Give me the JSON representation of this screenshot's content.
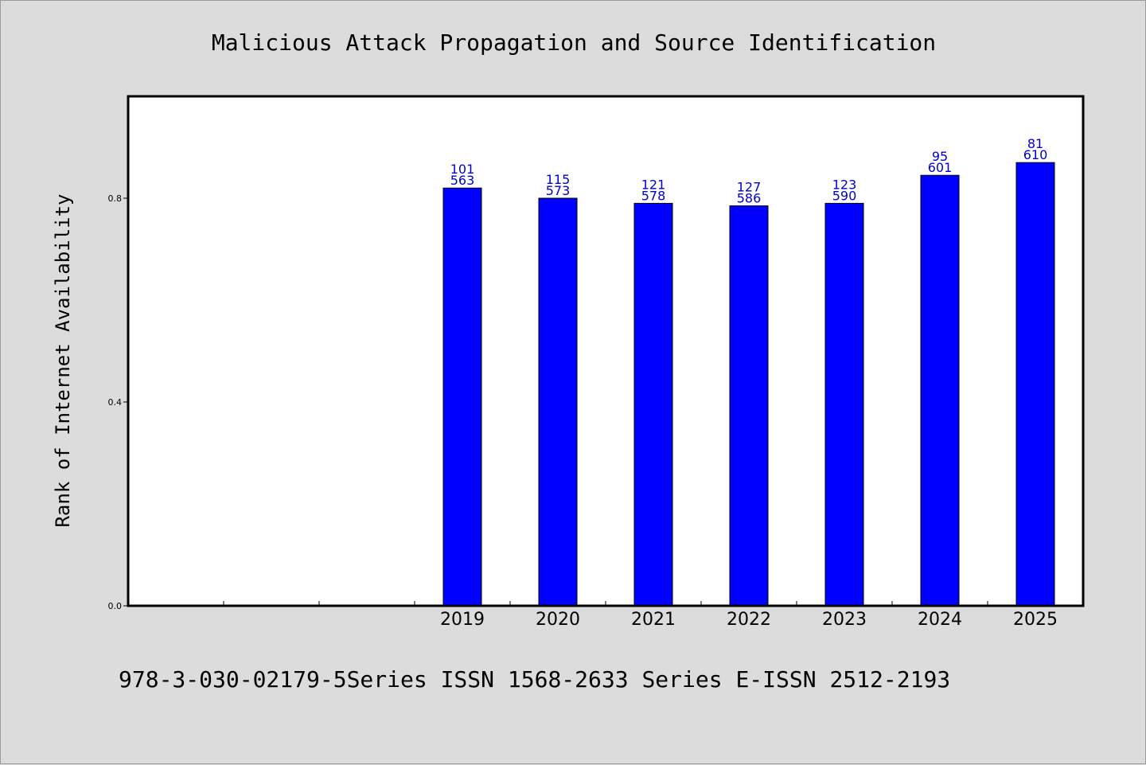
{
  "chart_data": {
    "type": "bar",
    "title": "Malicious Attack Propagation and Source Identification",
    "xlabel": "",
    "ylabel": "Rank of Internet Availability",
    "categories": [
      "",
      "",
      "",
      "2019",
      "2020",
      "2021",
      "2022",
      "2023",
      "2024",
      "2025"
    ],
    "values": [
      null,
      null,
      null,
      0.82,
      0.8,
      0.79,
      0.785,
      0.79,
      0.845,
      0.87
    ],
    "data_labels": [
      null,
      null,
      null,
      [
        "101",
        "563"
      ],
      [
        "115",
        "573"
      ],
      [
        "121",
        "578"
      ],
      [
        "127",
        "586"
      ],
      [
        "123",
        "590"
      ],
      [
        "95",
        "601"
      ],
      [
        "81",
        "610"
      ]
    ],
    "ylim": [
      0,
      1.0
    ],
    "yticks": [
      0.0,
      0.4,
      0.8
    ],
    "ytick_labels": [
      "0.0",
      "0.4",
      "0.8"
    ],
    "grid": false,
    "legend": "none",
    "bar_color": "#0000ff",
    "label_color": "#0000cc"
  },
  "footer": {
    "text": "978-3-030-02179-5Series ISSN 1568-2633 Series E-ISSN 2512-2193"
  }
}
